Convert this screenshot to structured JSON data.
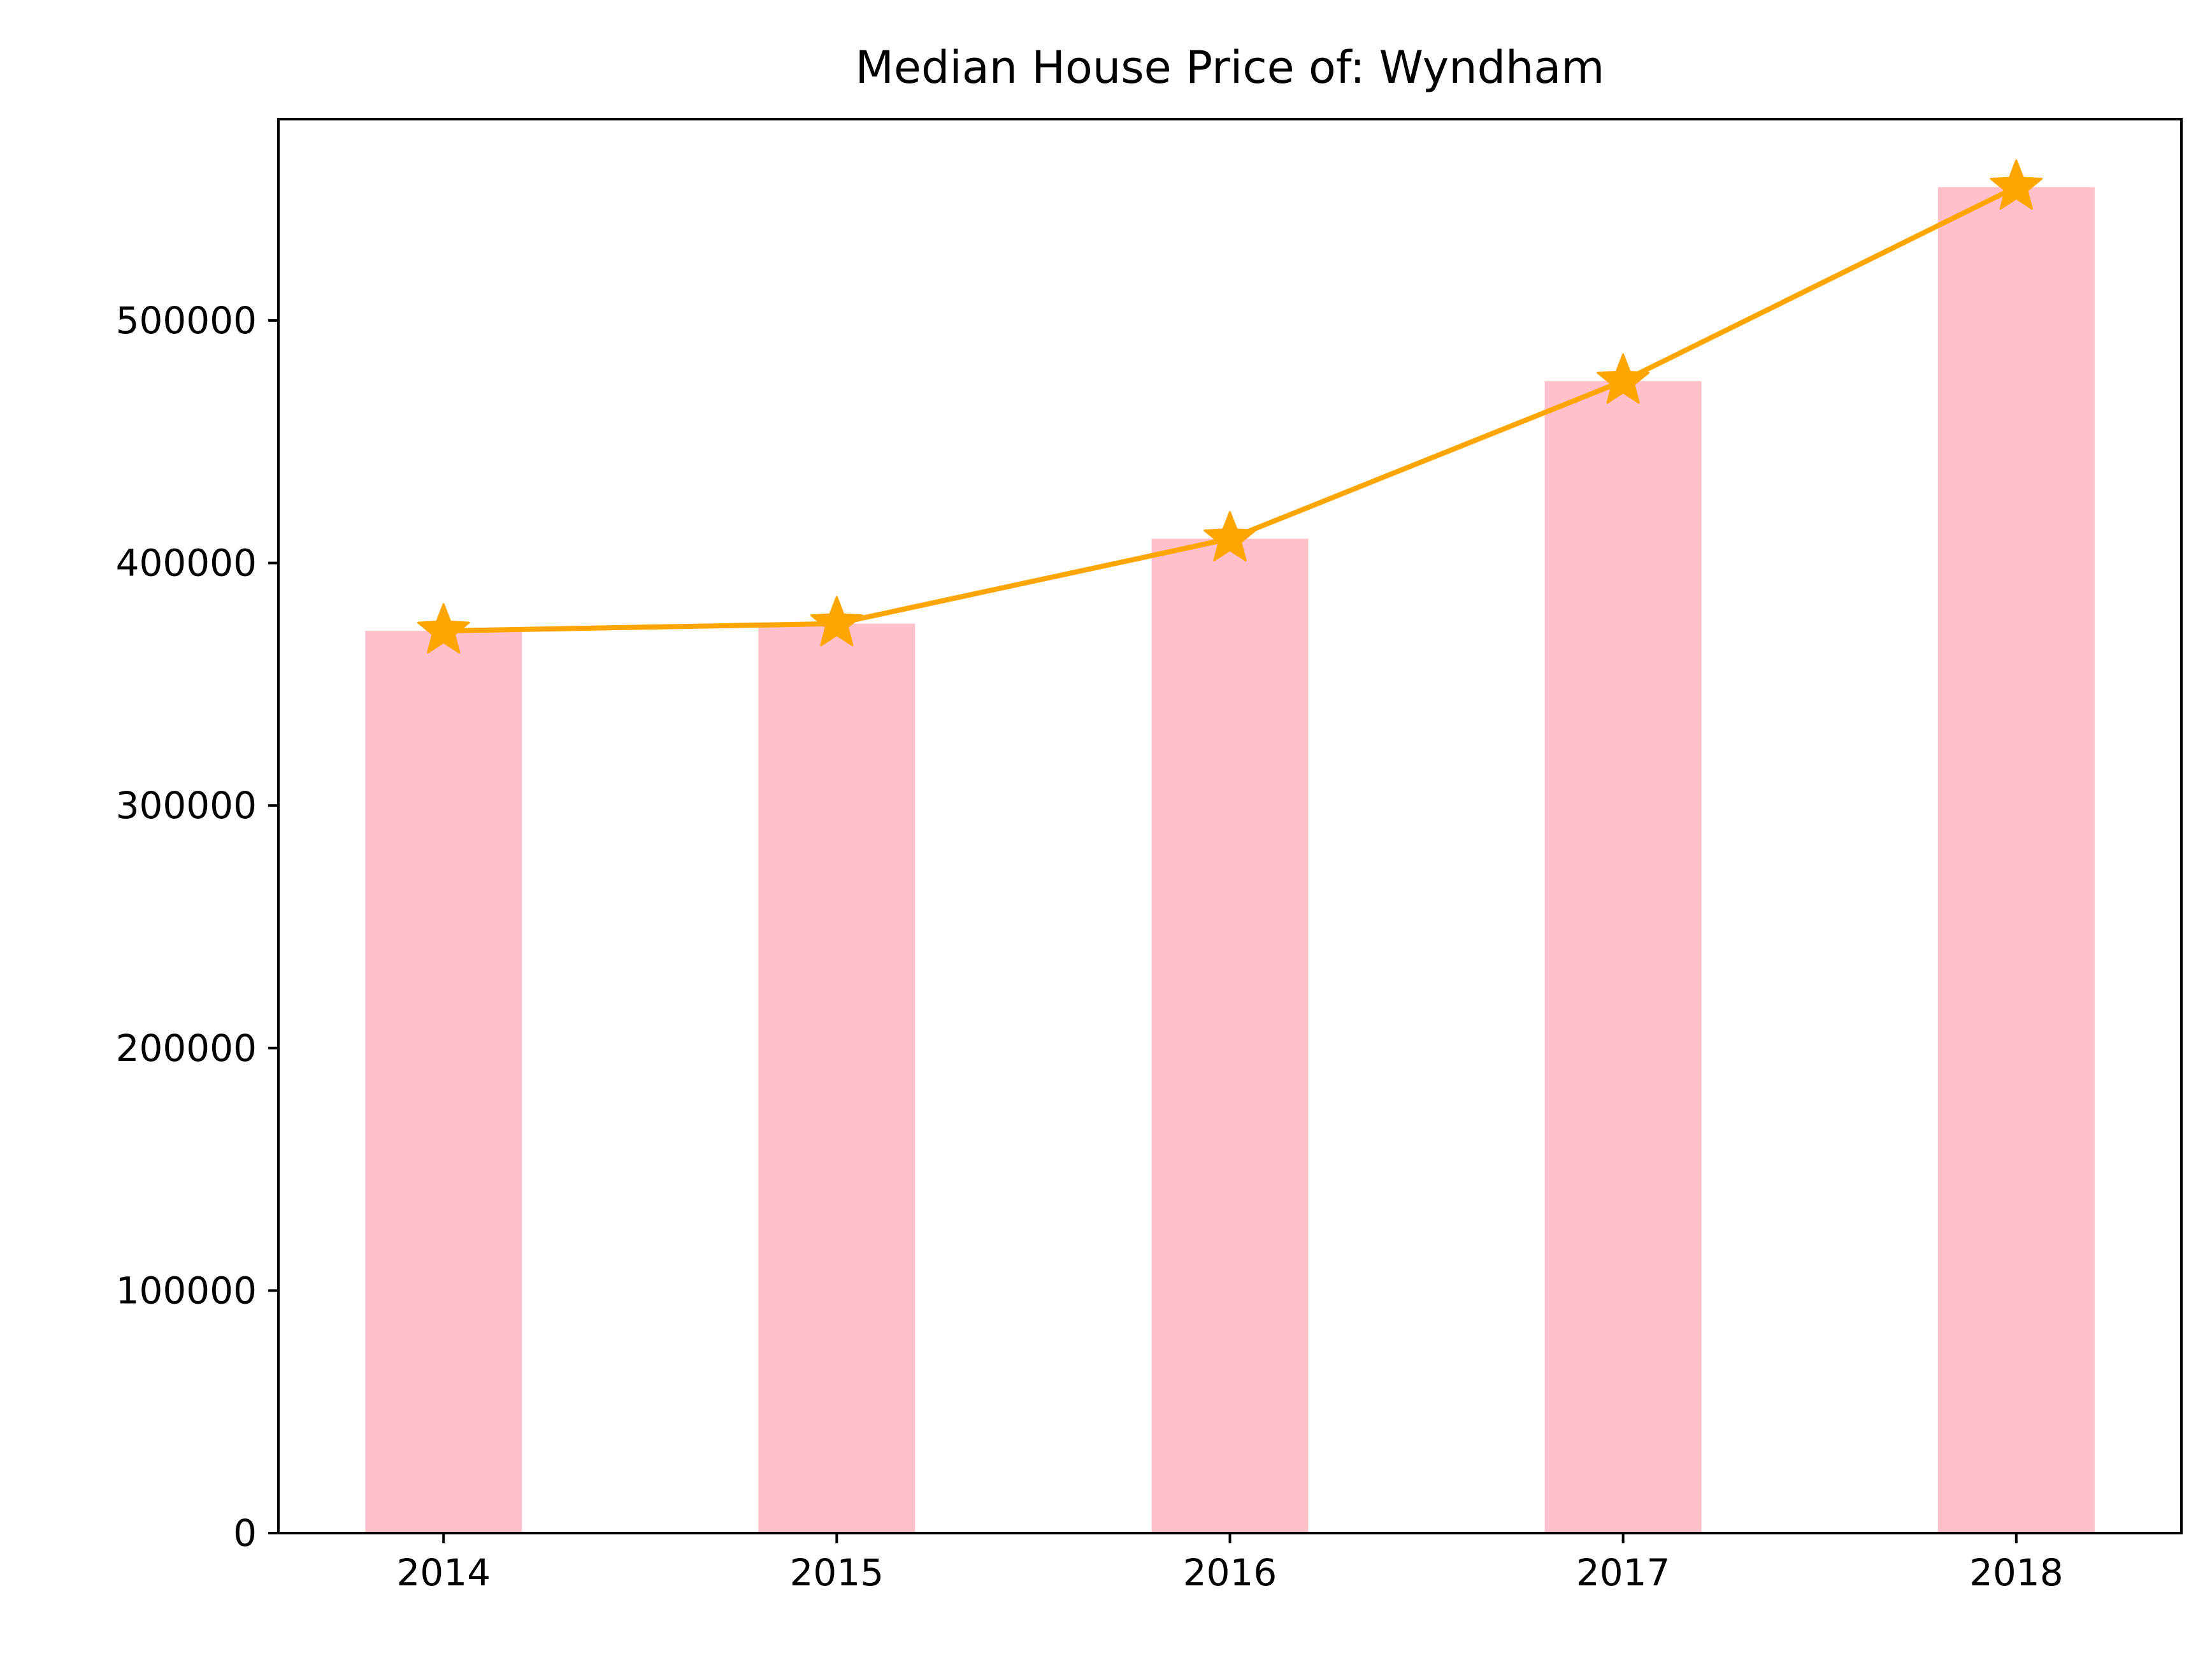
{
  "chart_data": {
    "type": "bar",
    "title": "Median House Price of: Wyndham",
    "xlabel": "",
    "ylabel": "",
    "categories": [
      "2014",
      "2015",
      "2016",
      "2017",
      "2018"
    ],
    "values": [
      372000,
      375000,
      410000,
      475000,
      555000
    ],
    "line_values": [
      372000,
      375000,
      410000,
      475000,
      555000
    ],
    "line_marker": "star",
    "ylim": [
      0,
      583000
    ],
    "yticks": [
      0,
      100000,
      200000,
      300000,
      400000,
      500000
    ],
    "ytick_labels": [
      "0",
      "100000",
      "200000",
      "300000",
      "400000",
      "500000"
    ],
    "grid": false,
    "legend": "none",
    "colors": {
      "bar": "#ffc0cb",
      "line": "#ffa500",
      "axis": "#000000"
    }
  }
}
